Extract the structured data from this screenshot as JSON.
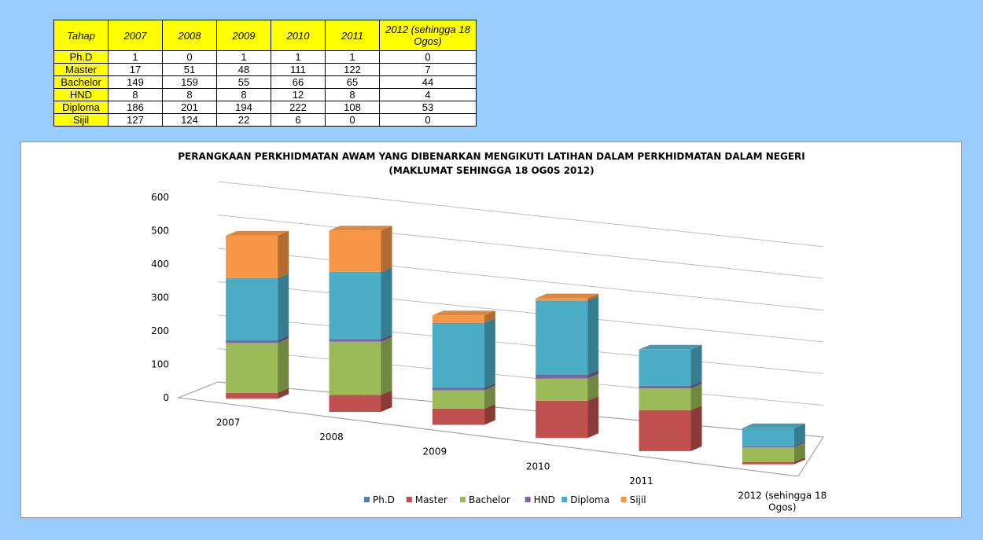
{
  "table": {
    "header": [
      "Tahap",
      "2007",
      "2008",
      "2009",
      "2010",
      "2011",
      "2012 (sehingga 18 Ogos)"
    ],
    "rows": [
      {
        "label": "Ph.D",
        "values": [
          "1",
          "0",
          "1",
          "1",
          "1",
          "0"
        ]
      },
      {
        "label": "Master",
        "values": [
          "17",
          "51",
          "48",
          "111",
          "122",
          "7"
        ]
      },
      {
        "label": "Bachelor",
        "values": [
          "149",
          "159",
          "55",
          "66",
          "65",
          "44"
        ]
      },
      {
        "label": "HND",
        "values": [
          "8",
          "8",
          "8",
          "12",
          "8",
          "4"
        ]
      },
      {
        "label": "Diploma",
        "values": [
          "186",
          "201",
          "194",
          "222",
          "108",
          "53"
        ]
      },
      {
        "label": "Sijil",
        "values": [
          "127",
          "124",
          "22",
          "6",
          "0",
          "0"
        ]
      }
    ]
  },
  "chart_data": {
    "type": "bar",
    "stacked": true,
    "three_d": true,
    "title": "PERANGKAAN PERKHIDMATAN AWAM YANG DIBENARKAN MENGIKUTI LATIHAN DALAM PERKHIDMATAN DALAM NEGERI",
    "subtitle": "(MAKLUMAT SEHINGGA 18 OG0S 2012)",
    "categories": [
      "2007",
      "2008",
      "2009",
      "2010",
      "2011",
      "2012 (sehingga 18 Ogos)"
    ],
    "series": [
      {
        "name": "Ph.D",
        "color": "#4f81bd",
        "values": [
          1,
          0,
          1,
          1,
          1,
          0
        ]
      },
      {
        "name": "Master",
        "color": "#c0504d",
        "values": [
          17,
          51,
          48,
          111,
          122,
          7
        ]
      },
      {
        "name": "Bachelor",
        "color": "#9bbb59",
        "values": [
          149,
          159,
          55,
          66,
          65,
          44
        ]
      },
      {
        "name": "HND",
        "color": "#8064a2",
        "values": [
          8,
          8,
          8,
          12,
          8,
          4
        ]
      },
      {
        "name": "Diploma",
        "color": "#4bacc6",
        "values": [
          186,
          201,
          194,
          222,
          108,
          53
        ]
      },
      {
        "name": "Sijil",
        "color": "#f79646",
        "values": [
          127,
          124,
          22,
          6,
          0,
          0
        ]
      }
    ],
    "y_ticks": [
      "0",
      "100",
      "200",
      "300",
      "400",
      "500",
      "600"
    ],
    "ylim": [
      0,
      600
    ],
    "grid": true,
    "legend_position": "bottom"
  }
}
